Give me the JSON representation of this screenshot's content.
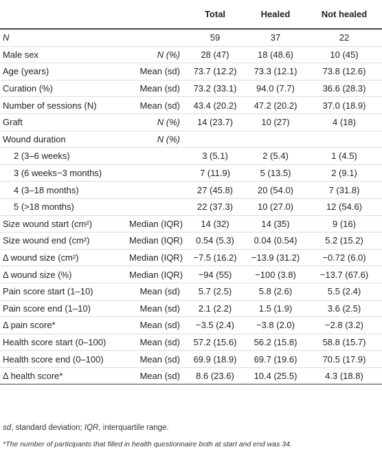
{
  "table": {
    "columns": [
      "Total",
      "Healed",
      "Not healed"
    ],
    "rows": [
      {
        "label": "N",
        "label_italic": true,
        "stat": "",
        "values": [
          "59",
          "37",
          "22"
        ]
      },
      {
        "label": "Male sex",
        "stat": "N (%)",
        "stat_italic": true,
        "values": [
          "28 (47)",
          "18 (48.6)",
          "10 (45)"
        ]
      },
      {
        "label": "Age (years)",
        "stat": "Mean (sd)",
        "values": [
          "73.7 (12.2)",
          "73.3 (12.1)",
          "73.8 (12.6)"
        ]
      },
      {
        "label": "Curation (%)",
        "stat": "Mean (sd)",
        "values": [
          "73.2 (33.1)",
          "94.0 (7.7)",
          "36.6 (28.3)"
        ]
      },
      {
        "label": "Number of sessions (N)",
        "stat": "Mean (sd)",
        "values": [
          "43.4 (20.2)",
          "47.2 (20.2)",
          "37.0 (18.9)"
        ]
      },
      {
        "label": "Graft",
        "stat": "N (%)",
        "stat_italic": true,
        "values": [
          "14 (23.7)",
          "10 (27)",
          "4 (18)"
        ]
      },
      {
        "label": "Wound duration",
        "stat": "N (%)",
        "stat_italic": true,
        "values": [
          "",
          "",
          ""
        ]
      },
      {
        "label": "2 (3–6 weeks)",
        "indent": true,
        "stat": "",
        "values": [
          "3 (5.1)",
          "2 (5.4)",
          "1 (4.5)"
        ]
      },
      {
        "label": "3 (6 weeks−3 months)",
        "indent": true,
        "stat": "",
        "values": [
          "7 (11.9)",
          "5 (13.5)",
          "2 (9.1)"
        ]
      },
      {
        "label": "4 (3–18 months)",
        "indent": true,
        "stat": "",
        "values": [
          "27 (45.8)",
          "20 (54.0)",
          "7 (31.8)"
        ]
      },
      {
        "label": "5 (>18 months)",
        "indent": true,
        "stat": "",
        "values": [
          "22 (37.3)",
          "10 (27.0)",
          "12 (54.6)"
        ]
      },
      {
        "label": "Size wound start (cm²)",
        "stat": "Median (IQR)",
        "values": [
          "14 (32)",
          "14 (35)",
          "9 (16)"
        ]
      },
      {
        "label": "Size wound end (cm²)",
        "stat": "Median (IQR)",
        "values": [
          "0.54 (5.3)",
          "0.04 (0.54)",
          "5.2 (15.2)"
        ]
      },
      {
        "label": "Δ wound size (cm²)",
        "stat": "Median (IQR)",
        "values": [
          "−7.5 (16.2)",
          "−13.9 (31.2)",
          "−0.72 (6.0)"
        ]
      },
      {
        "label": "Δ wound size (%)",
        "stat": "Median (IQR)",
        "values": [
          "−94 (55)",
          "−100 (3.8)",
          "−13.7 (67.6)"
        ]
      },
      {
        "label": "Pain score start (1–10)",
        "stat": "Mean (sd)",
        "values": [
          "5.7 (2.5)",
          "5.8 (2.6)",
          "5.5 (2.4)"
        ]
      },
      {
        "label": "Pain score end (1–10)",
        "stat": "Mean (sd)",
        "values": [
          "2.1 (2.2)",
          "1.5 (1.9)",
          "3.6 (2.5)"
        ]
      },
      {
        "label": "Δ pain score*",
        "stat": "Mean (sd)",
        "values": [
          "−3.5 (2.4)",
          "−3.8 (2.0)",
          "−2.8 (3.2)"
        ]
      },
      {
        "label": "Health score start (0–100)",
        "stat": "Mean (sd)",
        "values": [
          "57.2 (15.6)",
          "56.2 (15.8)",
          "58.8 (15.7)"
        ]
      },
      {
        "label": "Health score end (0–100)",
        "stat": "Mean (sd)",
        "values": [
          "69.9 (18.9)",
          "69.7 (19.6)",
          "70.5 (17.9)"
        ]
      },
      {
        "label": "Δ health score*",
        "stat": "Mean (sd)",
        "values": [
          "8.6 (23.6)",
          "10.4 (25.5)",
          "4.3 (18.8)"
        ]
      }
    ],
    "footnotes": [
      [
        "sd",
        ", standard deviation; ",
        "IQR",
        ", interquartile range."
      ],
      "*The number of participants that filled in health questionnaire both at start and end was 34."
    ]
  }
}
